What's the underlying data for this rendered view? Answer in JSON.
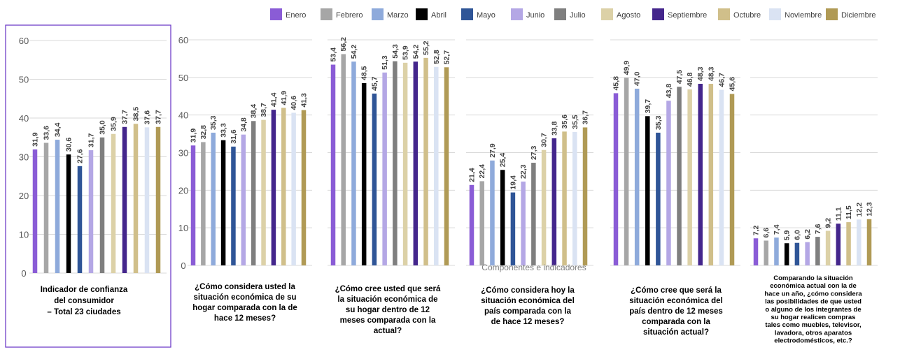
{
  "chart_data": {
    "type": "bar",
    "x_axis_title": "Componentes e indicadores",
    "ylim": [
      0,
      60
    ],
    "yticks": [
      0,
      10,
      20,
      30,
      40,
      50,
      60
    ],
    "grid": true,
    "legend_position": "top-right",
    "series": [
      {
        "name": "Enero",
        "color": "#8a5cd6"
      },
      {
        "name": "Febrero",
        "color": "#a6a6a6"
      },
      {
        "name": "Marzo",
        "color": "#8eaadb"
      },
      {
        "name": "Abril",
        "color": "#000000"
      },
      {
        "name": "Mayo",
        "color": "#2f5597"
      },
      {
        "name": "Junio",
        "color": "#b4a7e5"
      },
      {
        "name": "Julio",
        "color": "#7f7f7f"
      },
      {
        "name": "Agosto",
        "color": "#dcd1a7"
      },
      {
        "name": "Septiembre",
        "color": "#44268c"
      },
      {
        "name": "Octubre",
        "color": "#d0bf8a"
      },
      {
        "name": "Noviembre",
        "color": "#dae3f3"
      },
      {
        "name": "Diciembre",
        "color": "#b09a55"
      }
    ],
    "panels": [
      {
        "label_lines": [
          "Indicador de confianza",
          "del consumidor",
          "– Total 23 ciudades"
        ],
        "values": [
          31.9,
          33.6,
          34.4,
          30.6,
          27.6,
          31.7,
          35.0,
          35.9,
          37.7,
          38.5,
          37.6,
          37.7
        ],
        "labels": [
          "31,9",
          "33,6",
          "34,4",
          "30,6",
          "27,6",
          "31,7",
          "35,0",
          "35,9",
          "37,7",
          "38,5",
          "37,6",
          "37,7"
        ]
      },
      {
        "label_lines": [
          "¿Cómo considera usted la",
          "situación económica de su",
          "hogar comparada con la de",
          "hace 12 meses?"
        ],
        "values": [
          31.9,
          32.8,
          35.3,
          33.3,
          31.6,
          34.8,
          38.4,
          38.7,
          41.4,
          41.9,
          40.6,
          41.3
        ],
        "labels": [
          "31,9",
          "32,8",
          "35,3",
          "33,3",
          "31,6",
          "34,8",
          "38,4",
          "38,7",
          "41,4",
          "41,9",
          "40,6",
          "41,3"
        ]
      },
      {
        "label_lines": [
          "¿Cómo cree usted que será",
          "la situación económica de",
          "su hogar dentro de 12",
          "meses comparada con la",
          "actual?"
        ],
        "values": [
          53.4,
          56.2,
          54.2,
          48.5,
          45.7,
          51.3,
          54.3,
          53.9,
          54.2,
          55.2,
          52.8,
          52.7
        ],
        "labels": [
          "53,4",
          "56,2",
          "54,2",
          "48,5",
          "45,7",
          "51,3",
          "54,3",
          "53,9",
          "54,2",
          "55,2",
          "52,8",
          "52,7"
        ]
      },
      {
        "label_lines": [
          "¿Cómo considera hoy la",
          "situación económica del",
          "país comparada con la",
          "de hace 12 meses?"
        ],
        "values": [
          21.4,
          22.4,
          27.9,
          25.4,
          19.4,
          22.3,
          27.3,
          30.7,
          33.8,
          35.6,
          35.5,
          36.7
        ],
        "labels": [
          "21,4",
          "22,4",
          "27,9",
          "25,4",
          "19,4",
          "22,3",
          "27,3",
          "30,7",
          "33,8",
          "35,6",
          "35,5",
          "36,7"
        ]
      },
      {
        "label_lines": [
          "¿Cómo cree que será la",
          "situación económica del",
          "país dentro de 12 meses",
          "comparada con la",
          "situación actual?"
        ],
        "values": [
          45.8,
          49.9,
          47.0,
          39.7,
          35.3,
          43.8,
          47.5,
          46.8,
          48.3,
          48.3,
          46.7,
          45.6
        ],
        "labels": [
          "45,8",
          "49,9",
          "47,0",
          "39,7",
          "35,3",
          "43,8",
          "47,5",
          "46,8",
          "48,3",
          "48,3",
          "46,7",
          "45,6"
        ]
      },
      {
        "label_lines": [
          "Comparando la situación",
          "económica actual con la de",
          "hace un año, ¿cómo considera",
          "las posibilidades de que usted",
          "o alguno de los integrantes de",
          "su hogar realicen compras",
          "tales como muebles, televisor,",
          "lavadora, otros aparatos",
          "electrodomésticos, etc.?"
        ],
        "values": [
          7.2,
          6.6,
          7.4,
          5.9,
          6.0,
          6.2,
          7.6,
          9.2,
          11.1,
          11.5,
          12.2,
          12.3
        ],
        "labels": [
          "7,2",
          "6,6",
          "7,4",
          "5,9",
          "6,0",
          "6,2",
          "7,6",
          "9,2",
          "11,1",
          "11,5",
          "12,2",
          "12,3"
        ]
      }
    ]
  }
}
